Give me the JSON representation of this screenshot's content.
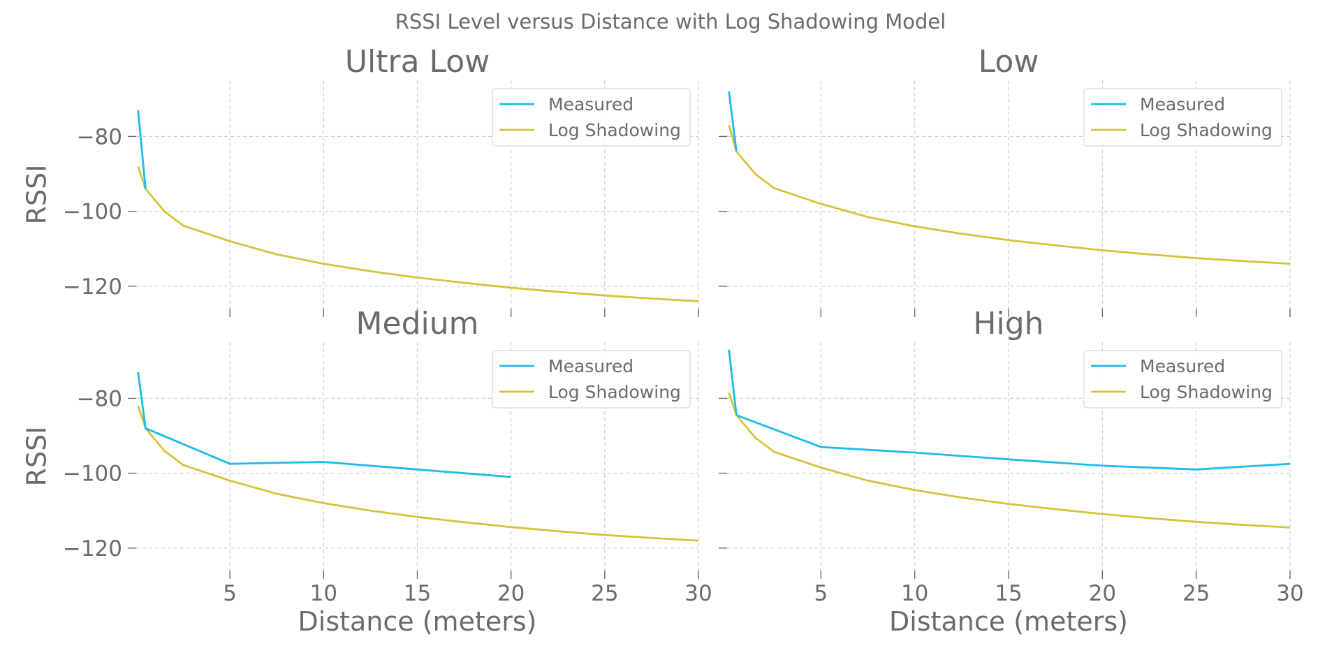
{
  "figure_title": "RSSI Level versus Distance with Log Shadowing Model",
  "chart_data": [
    {
      "type": "line",
      "title": "Ultra Low",
      "xlabel": "",
      "ylabel": "RSSI",
      "xlim": [
        0,
        30
      ],
      "ylim": [
        -126,
        -65
      ],
      "xticks": [],
      "yticks": [
        -120,
        -100,
        -80
      ],
      "grid": true,
      "legend_position": "top-right",
      "series": [
        {
          "name": "Measured",
          "color": "#1bbbea",
          "x": [
            0.1,
            0.5
          ],
          "y": [
            -73,
            -94
          ]
        },
        {
          "name": "Log Shadowing",
          "color": "#d3c43a",
          "x": [
            0.1,
            0.5,
            1.5,
            2.5,
            5,
            7.5,
            10,
            12.5,
            15,
            17.5,
            20,
            22.5,
            25,
            27.5,
            30
          ],
          "y": [
            -88,
            -94,
            -100,
            -103.8,
            -108,
            -111.5,
            -114,
            -116,
            -117.7,
            -119.1,
            -120.4,
            -121.5,
            -122.5,
            -123.3,
            -124
          ]
        }
      ]
    },
    {
      "type": "line",
      "title": "Low",
      "xlabel": "",
      "ylabel": "",
      "xlim": [
        0,
        30
      ],
      "ylim": [
        -126,
        -65
      ],
      "xticks": [],
      "yticks": [],
      "grid": true,
      "legend_position": "top-right",
      "series": [
        {
          "name": "Measured",
          "color": "#1bbbea",
          "x": [
            0.1,
            0.5
          ],
          "y": [
            -68,
            -84
          ]
        },
        {
          "name": "Log Shadowing",
          "color": "#d3c43a",
          "x": [
            0.1,
            0.5,
            1.5,
            2.5,
            5,
            7.5,
            10,
            12.5,
            15,
            17.5,
            20,
            22.5,
            25,
            27.5,
            30
          ],
          "y": [
            -77,
            -84,
            -90,
            -93.8,
            -98,
            -101.5,
            -104,
            -106,
            -107.7,
            -109.1,
            -110.4,
            -111.5,
            -112.5,
            -113.3,
            -114
          ]
        }
      ]
    },
    {
      "type": "line",
      "title": "Medium",
      "xlabel": "Distance (meters)",
      "ylabel": "RSSI",
      "xlim": [
        0,
        30
      ],
      "ylim": [
        -126,
        -65
      ],
      "xticks": [
        5,
        10,
        15,
        20,
        25,
        30
      ],
      "yticks": [
        -120,
        -100,
        -80
      ],
      "grid": true,
      "legend_position": "top-right",
      "series": [
        {
          "name": "Measured",
          "color": "#1bbbea",
          "x": [
            0.1,
            0.5,
            5,
            10,
            15,
            20
          ],
          "y": [
            -73,
            -88,
            -97.5,
            -97,
            -99,
            -101
          ]
        },
        {
          "name": "Log Shadowing",
          "color": "#d3c43a",
          "x": [
            0.1,
            0.5,
            1.5,
            2.5,
            5,
            7.5,
            10,
            12.5,
            15,
            17.5,
            20,
            22.5,
            25,
            27.5,
            30
          ],
          "y": [
            -82,
            -88,
            -94,
            -97.8,
            -102,
            -105.5,
            -108,
            -110,
            -111.7,
            -113.1,
            -114.4,
            -115.5,
            -116.5,
            -117.3,
            -118
          ]
        }
      ]
    },
    {
      "type": "line",
      "title": "High",
      "xlabel": "Distance (meters)",
      "ylabel": "",
      "xlim": [
        0,
        30
      ],
      "ylim": [
        -126,
        -65
      ],
      "xticks": [
        5,
        10,
        15,
        20,
        25,
        30
      ],
      "yticks": [],
      "grid": true,
      "legend_position": "top-right",
      "series": [
        {
          "name": "Measured",
          "color": "#1bbbea",
          "x": [
            0.1,
            0.5,
            5,
            10,
            15,
            20,
            25,
            30
          ],
          "y": [
            -67,
            -84.5,
            -93,
            -94.5,
            -96.3,
            -98,
            -99,
            -97.5
          ]
        },
        {
          "name": "Log Shadowing",
          "color": "#d3c43a",
          "x": [
            0.1,
            0.5,
            1.5,
            2.5,
            5,
            7.5,
            10,
            12.5,
            15,
            17.5,
            20,
            22.5,
            25,
            27.5,
            30
          ],
          "y": [
            -78.5,
            -84.5,
            -90.5,
            -94.3,
            -98.5,
            -102,
            -104.5,
            -106.5,
            -108.2,
            -109.6,
            -110.9,
            -112,
            -113,
            -113.8,
            -114.5
          ]
        }
      ]
    }
  ]
}
